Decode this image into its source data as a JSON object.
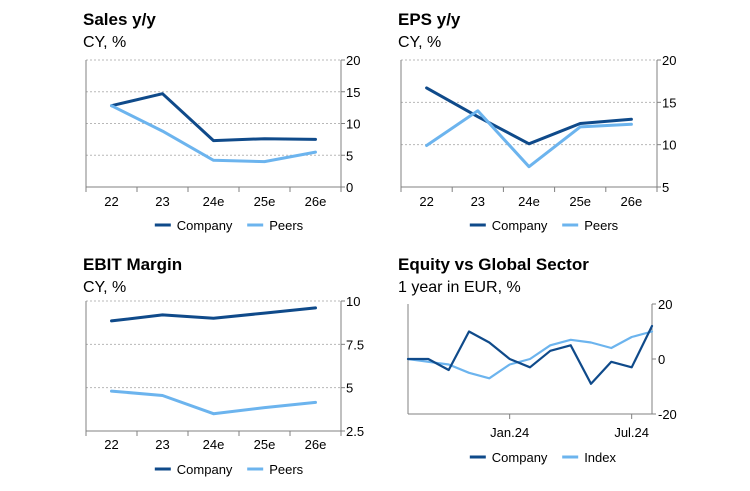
{
  "colors": {
    "company": "#0f4a8a",
    "peers": "#6cb4ee",
    "grid": "#b8b8b8",
    "axis": "#808080"
  },
  "chart_data": [
    {
      "type": "line",
      "title": "Sales y/y",
      "subtitle": "CY, %",
      "categories": [
        "22",
        "23",
        "24e",
        "25e",
        "26e"
      ],
      "ylim": [
        0,
        20
      ],
      "yticks": [
        "20",
        "15",
        "10",
        "5",
        "0"
      ],
      "grid": true,
      "legend": "bottom",
      "series": [
        {
          "name": "Company",
          "color_key": "company",
          "values": [
            12.8,
            14.7,
            7.3,
            7.6,
            7.5
          ]
        },
        {
          "name": "Peers",
          "color_key": "peers",
          "values": [
            12.8,
            8.8,
            4.2,
            4.0,
            5.5
          ]
        }
      ]
    },
    {
      "type": "line",
      "title": "EPS y/y",
      "subtitle": "CY, %",
      "categories": [
        "22",
        "23",
        "24e",
        "25e",
        "26e"
      ],
      "ylim": [
        5,
        20
      ],
      "yticks": [
        "20",
        "15",
        "10",
        "5"
      ],
      "grid": true,
      "legend": "bottom",
      "series": [
        {
          "name": "Company",
          "color_key": "company",
          "values": [
            16.7,
            13.3,
            10.1,
            12.5,
            13.0
          ]
        },
        {
          "name": "Peers",
          "color_key": "peers",
          "values": [
            9.9,
            14.0,
            7.4,
            12.1,
            12.4
          ]
        }
      ]
    },
    {
      "type": "line",
      "title": "EBIT Margin",
      "subtitle": "CY, %",
      "categories": [
        "22",
        "23",
        "24e",
        "25e",
        "26e"
      ],
      "ylim": [
        2.5,
        10
      ],
      "yticks": [
        "10",
        "7.5",
        "5",
        "2.5"
      ],
      "grid": true,
      "legend": "bottom",
      "series": [
        {
          "name": "Company",
          "color_key": "company",
          "values": [
            8.85,
            9.2,
            9.0,
            9.3,
            9.6
          ]
        },
        {
          "name": "Peers",
          "color_key": "peers",
          "values": [
            4.8,
            4.55,
            3.5,
            3.85,
            4.15
          ]
        }
      ]
    },
    {
      "type": "line",
      "title": "Equity vs Global Sector",
      "subtitle": "1 year in EUR, %",
      "x_tick_labels": [
        {
          "label": "Jan.24",
          "x": "2024-01"
        },
        {
          "label": "Jul.24",
          "x": "2024-07"
        }
      ],
      "x": [
        "2023-08",
        "2023-09",
        "2023-10",
        "2023-11",
        "2023-12",
        "2024-01",
        "2024-02",
        "2024-03",
        "2024-04",
        "2024-05",
        "2024-06",
        "2024-07",
        "2024-08"
      ],
      "ylim": [
        -20,
        20
      ],
      "yticks": [
        "20",
        "0",
        "-20"
      ],
      "grid": false,
      "legend": "bottom",
      "series": [
        {
          "name": "Company",
          "color_key": "company",
          "values": [
            0,
            0,
            -4,
            10,
            6,
            0,
            -3,
            3,
            5,
            -9,
            -1,
            -3,
            12
          ]
        },
        {
          "name": "Index",
          "color_key": "peers",
          "values": [
            0,
            -1,
            -2,
            -5,
            -7,
            -2,
            0,
            5,
            7,
            6,
            4,
            8,
            10
          ]
        }
      ]
    }
  ]
}
